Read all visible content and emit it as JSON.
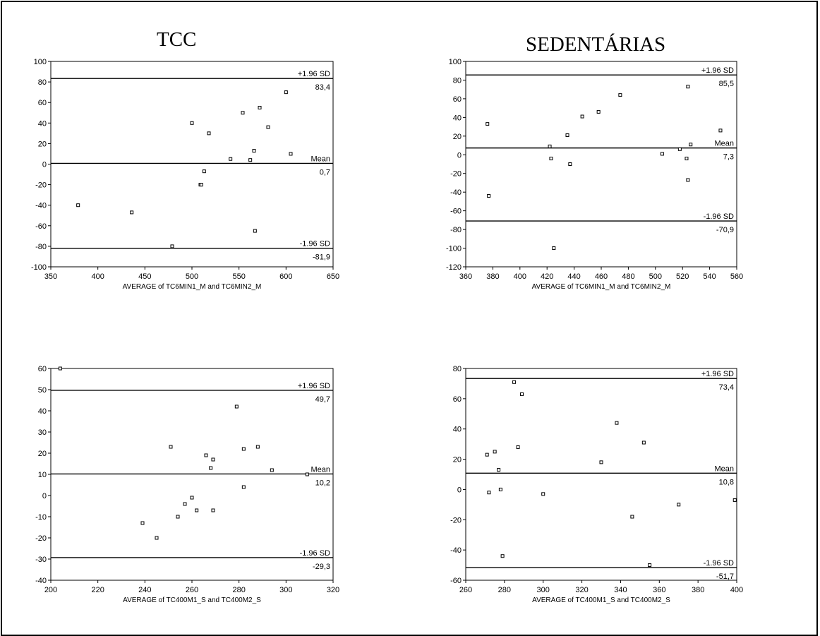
{
  "panel_titles": {
    "left": "TCC",
    "right": "SEDENTÁRIAS"
  },
  "chart_data": [
    {
      "type": "scatter",
      "title": "TCC",
      "xlabel": "AVERAGE of TC6MIN1_M and TC6MIN2_M",
      "ylabel": "",
      "xlim": [
        350,
        650
      ],
      "ylim": [
        -100,
        100
      ],
      "xticks": [
        350,
        400,
        450,
        500,
        550,
        600,
        650
      ],
      "yticks": [
        -100,
        -80,
        -60,
        -40,
        -20,
        0,
        20,
        40,
        60,
        80,
        100
      ],
      "grid": false,
      "reference_lines": [
        {
          "label": "+1.96 SD",
          "value": 83.4,
          "value_label": "83,4"
        },
        {
          "label": "Mean",
          "value": 0.7,
          "value_label": "0,7"
        },
        {
          "label": "-1.96 SD",
          "value": -81.9,
          "value_label": "-81,9"
        }
      ],
      "points": [
        {
          "x": 379,
          "y": -40
        },
        {
          "x": 436,
          "y": -47
        },
        {
          "x": 479,
          "y": -80
        },
        {
          "x": 500,
          "y": 40
        },
        {
          "x": 509,
          "y": -20
        },
        {
          "x": 510,
          "y": -20
        },
        {
          "x": 513,
          "y": -7
        },
        {
          "x": 518,
          "y": 30
        },
        {
          "x": 541,
          "y": 5
        },
        {
          "x": 554,
          "y": 50
        },
        {
          "x": 562,
          "y": 4
        },
        {
          "x": 566,
          "y": 13
        },
        {
          "x": 567,
          "y": -65
        },
        {
          "x": 572,
          "y": 55
        },
        {
          "x": 581,
          "y": 36
        },
        {
          "x": 600,
          "y": 70
        },
        {
          "x": 605,
          "y": 10
        }
      ]
    },
    {
      "type": "scatter",
      "title": "SEDENTÁRIAS",
      "xlabel": "AVERAGE of TC6MIN1_M and TC6MIN2_M",
      "ylabel": "",
      "xlim": [
        360,
        560
      ],
      "ylim": [
        -120,
        100
      ],
      "xticks": [
        360,
        380,
        400,
        420,
        440,
        460,
        480,
        500,
        520,
        540,
        560
      ],
      "yticks": [
        -120,
        -100,
        -80,
        -60,
        -40,
        -20,
        0,
        20,
        40,
        60,
        80,
        100
      ],
      "grid": false,
      "reference_lines": [
        {
          "label": "+1.96 SD",
          "value": 85.5,
          "value_label": "85,5"
        },
        {
          "label": "Mean",
          "value": 7.3,
          "value_label": "7,3"
        },
        {
          "label": "-1.96 SD",
          "value": -70.9,
          "value_label": "-70,9"
        }
      ],
      "points": [
        {
          "x": 376,
          "y": 33
        },
        {
          "x": 377,
          "y": -44
        },
        {
          "x": 422,
          "y": 9
        },
        {
          "x": 423,
          "y": -4
        },
        {
          "x": 425,
          "y": -100
        },
        {
          "x": 435,
          "y": 21
        },
        {
          "x": 437,
          "y": -10
        },
        {
          "x": 446,
          "y": 41
        },
        {
          "x": 458,
          "y": 46
        },
        {
          "x": 474,
          "y": 64
        },
        {
          "x": 505,
          "y": 1
        },
        {
          "x": 518,
          "y": 6
        },
        {
          "x": 523,
          "y": -4
        },
        {
          "x": 524,
          "y": 73
        },
        {
          "x": 524,
          "y": -27
        },
        {
          "x": 526,
          "y": 11
        },
        {
          "x": 548,
          "y": 26
        }
      ]
    },
    {
      "type": "scatter",
      "title": "",
      "xlabel": "AVERAGE of TC400M1_S and TC400M2_S",
      "ylabel": "",
      "xlim": [
        200,
        320
      ],
      "ylim": [
        -40,
        60
      ],
      "xticks": [
        200,
        220,
        240,
        260,
        280,
        300,
        320
      ],
      "yticks": [
        -40,
        -30,
        -20,
        -10,
        0,
        10,
        20,
        30,
        40,
        50,
        60
      ],
      "grid": false,
      "reference_lines": [
        {
          "label": "+1.96 SD",
          "value": 49.7,
          "value_label": "49,7"
        },
        {
          "label": "Mean",
          "value": 10.2,
          "value_label": "10,2"
        },
        {
          "label": "-1.96 SD",
          "value": -29.3,
          "value_label": "-29,3"
        }
      ],
      "points": [
        {
          "x": 204,
          "y": 60
        },
        {
          "x": 239,
          "y": -13
        },
        {
          "x": 245,
          "y": -20
        },
        {
          "x": 251,
          "y": 23
        },
        {
          "x": 254,
          "y": -10
        },
        {
          "x": 257,
          "y": -4
        },
        {
          "x": 260,
          "y": -1
        },
        {
          "x": 262,
          "y": -7
        },
        {
          "x": 266,
          "y": 19
        },
        {
          "x": 268,
          "y": 13
        },
        {
          "x": 269,
          "y": 17
        },
        {
          "x": 269,
          "y": -7
        },
        {
          "x": 279,
          "y": 42
        },
        {
          "x": 282,
          "y": 22
        },
        {
          "x": 282,
          "y": 4
        },
        {
          "x": 288,
          "y": 23
        },
        {
          "x": 294,
          "y": 12
        },
        {
          "x": 309,
          "y": 10
        }
      ]
    },
    {
      "type": "scatter",
      "title": "",
      "xlabel": "AVERAGE of TC400M1_S and TC400M2_S",
      "ylabel": "",
      "xlim": [
        260,
        400
      ],
      "ylim": [
        -60,
        80
      ],
      "xticks": [
        260,
        280,
        300,
        320,
        340,
        360,
        380,
        400
      ],
      "yticks": [
        -60,
        -40,
        -20,
        0,
        20,
        40,
        60,
        80
      ],
      "grid": false,
      "reference_lines": [
        {
          "label": "+1.96 SD",
          "value": 73.4,
          "value_label": "73,4"
        },
        {
          "label": "Mean",
          "value": 10.8,
          "value_label": "10,8"
        },
        {
          "label": "-1.96 SD",
          "value": -51.7,
          "value_label": "-51,7"
        }
      ],
      "points": [
        {
          "x": 271,
          "y": 23
        },
        {
          "x": 272,
          "y": -2
        },
        {
          "x": 275,
          "y": 25
        },
        {
          "x": 277,
          "y": 13
        },
        {
          "x": 278,
          "y": 0
        },
        {
          "x": 279,
          "y": -44
        },
        {
          "x": 285,
          "y": 71
        },
        {
          "x": 287,
          "y": 28
        },
        {
          "x": 289,
          "y": 63
        },
        {
          "x": 300,
          "y": -3
        },
        {
          "x": 330,
          "y": 18
        },
        {
          "x": 338,
          "y": 44
        },
        {
          "x": 346,
          "y": -18
        },
        {
          "x": 352,
          "y": 31
        },
        {
          "x": 355,
          "y": -50
        },
        {
          "x": 370,
          "y": -10
        },
        {
          "x": 399,
          "y": -7
        }
      ]
    }
  ]
}
